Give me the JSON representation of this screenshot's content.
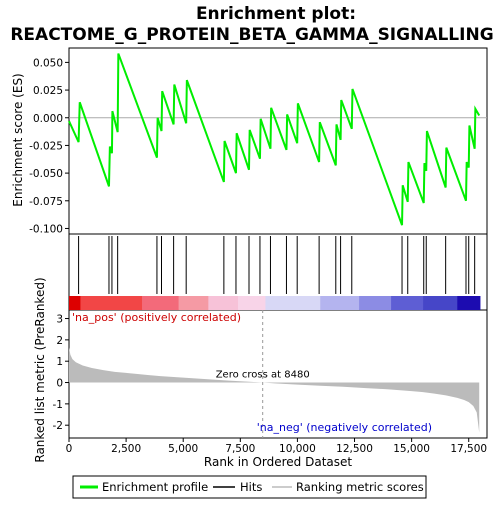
{
  "title_line1": "Enrichment plot:",
  "title_line2": "REACTOME_G_PROTEIN_BETA_GAMMA_SIGNALLING",
  "chart_data": {
    "type": "line",
    "x_axis": {
      "label": "Rank in Ordered Dataset",
      "ticks": [
        0,
        2500,
        5000,
        7500,
        10000,
        12500,
        15000,
        17500
      ],
      "tick_labels": [
        "0",
        "2,500",
        "5,000",
        "7,500",
        "10,000",
        "12,500",
        "15,000",
        "17,500"
      ],
      "range": [
        0,
        18300
      ]
    },
    "es_panel": {
      "ylabel": "Enrichment score (ES)",
      "ylim": [
        -0.105,
        0.063
      ],
      "ticks": [
        0.05,
        0.025,
        0.0,
        -0.025,
        -0.05,
        -0.075,
        -0.1
      ],
      "tick_labels": [
        "0.050",
        "0.025",
        "0.000",
        "-0.025",
        "-0.050",
        "-0.075",
        "-0.100"
      ],
      "color": "#00ee00",
      "points": [
        [
          0,
          -0.003
        ],
        [
          420,
          -0.022
        ],
        [
          470,
          0.014
        ],
        [
          1750,
          -0.062
        ],
        [
          1790,
          -0.026
        ],
        [
          1880,
          -0.032
        ],
        [
          1900,
          0.006
        ],
        [
          2130,
          -0.013
        ],
        [
          2160,
          0.058
        ],
        [
          3850,
          -0.036
        ],
        [
          3880,
          0.0
        ],
        [
          4050,
          -0.012
        ],
        [
          4080,
          0.024
        ],
        [
          4580,
          -0.006
        ],
        [
          4610,
          0.03
        ],
        [
          5130,
          -0.005
        ],
        [
          5160,
          0.034
        ],
        [
          6780,
          -0.058
        ],
        [
          6810,
          -0.021
        ],
        [
          7310,
          -0.05
        ],
        [
          7340,
          -0.014
        ],
        [
          7880,
          -0.047
        ],
        [
          7910,
          -0.011
        ],
        [
          8360,
          -0.037
        ],
        [
          8390,
          -0.001
        ],
        [
          8820,
          -0.028
        ],
        [
          8850,
          0.009
        ],
        [
          9520,
          -0.029
        ],
        [
          9550,
          0.003
        ],
        [
          9990,
          -0.023
        ],
        [
          10020,
          0.013
        ],
        [
          10950,
          -0.04
        ],
        [
          10980,
          -0.004
        ],
        [
          11680,
          -0.043
        ],
        [
          11710,
          -0.006
        ],
        [
          11890,
          -0.02
        ],
        [
          11920,
          0.016
        ],
        [
          12380,
          -0.01
        ],
        [
          12410,
          0.026
        ],
        [
          14580,
          -0.097
        ],
        [
          14610,
          -0.061
        ],
        [
          14830,
          -0.076
        ],
        [
          14860,
          -0.04
        ],
        [
          15530,
          -0.077
        ],
        [
          15560,
          -0.041
        ],
        [
          15640,
          -0.048
        ],
        [
          15670,
          -0.012
        ],
        [
          16490,
          -0.063
        ],
        [
          16520,
          -0.027
        ],
        [
          17380,
          -0.075
        ],
        [
          17410,
          -0.04
        ],
        [
          17500,
          -0.045
        ],
        [
          17530,
          -0.007
        ],
        [
          17760,
          -0.028
        ],
        [
          17790,
          0.008
        ],
        [
          17960,
          0.002
        ]
      ]
    },
    "hits": [
      420,
      1750,
      1880,
      2130,
      3850,
      4050,
      4580,
      5130,
      6780,
      7310,
      7880,
      8360,
      8820,
      9520,
      9990,
      10950,
      11680,
      11890,
      12380,
      14580,
      14830,
      15530,
      15640,
      16490,
      17380,
      17500,
      17760
    ],
    "heatmap": {
      "segments": [
        {
          "from": 0,
          "to": 500,
          "color": "#dd0000"
        },
        {
          "from": 500,
          "to": 3200,
          "color": "#f24646"
        },
        {
          "from": 3200,
          "to": 4800,
          "color": "#f36a7a"
        },
        {
          "from": 4800,
          "to": 6100,
          "color": "#f59aa4"
        },
        {
          "from": 6100,
          "to": 7400,
          "color": "#f7c2d8"
        },
        {
          "from": 7400,
          "to": 8600,
          "color": "#f8d4e8"
        },
        {
          "from": 8600,
          "to": 11000,
          "color": "#d8d8f6"
        },
        {
          "from": 11000,
          "to": 12700,
          "color": "#b4b4ef"
        },
        {
          "from": 12700,
          "to": 14100,
          "color": "#8c8ce4"
        },
        {
          "from": 14100,
          "to": 15500,
          "color": "#5e5ed4"
        },
        {
          "from": 15500,
          "to": 17000,
          "color": "#4646c8"
        },
        {
          "from": 17000,
          "to": 18000,
          "color": "#1c0cb0"
        }
      ]
    },
    "metric_panel": {
      "ylabel": "Ranked list metric (PreRanked)",
      "ylim": [
        -2.6,
        3.4
      ],
      "ticks": [
        3,
        2,
        1,
        0,
        -1,
        -2
      ],
      "tick_labels": [
        "3",
        "2",
        "1",
        "0",
        "-1",
        "-2"
      ],
      "fill_color": "#bbbbbb",
      "curve": [
        [
          0,
          1.65
        ],
        [
          60,
          1.3
        ],
        [
          150,
          1.1
        ],
        [
          300,
          0.95
        ],
        [
          600,
          0.8
        ],
        [
          1000,
          0.68
        ],
        [
          1500,
          0.58
        ],
        [
          2000,
          0.5
        ],
        [
          2500,
          0.45
        ],
        [
          3000,
          0.4
        ],
        [
          3500,
          0.35
        ],
        [
          4000,
          0.3
        ],
        [
          5000,
          0.23
        ],
        [
          6000,
          0.16
        ],
        [
          7000,
          0.09
        ],
        [
          8000,
          0.03
        ],
        [
          8480,
          0.0
        ],
        [
          9000,
          -0.04
        ],
        [
          10000,
          -0.1
        ],
        [
          11000,
          -0.15
        ],
        [
          12000,
          -0.2
        ],
        [
          13000,
          -0.26
        ],
        [
          14000,
          -0.32
        ],
        [
          15000,
          -0.4
        ],
        [
          15500,
          -0.45
        ],
        [
          16000,
          -0.52
        ],
        [
          16500,
          -0.6
        ],
        [
          17000,
          -0.72
        ],
        [
          17300,
          -0.82
        ],
        [
          17500,
          -0.92
        ],
        [
          17700,
          -1.1
        ],
        [
          17850,
          -1.4
        ],
        [
          17960,
          -2.35
        ]
      ],
      "zero_cross": 8480,
      "zero_cross_label": "Zero cross at 8480",
      "pos_label": "'na_pos' (positively correlated)",
      "neg_label": "'na_neg' (negatively correlated)",
      "pos_color": "#cc0000",
      "neg_color": "#0000cc"
    },
    "legend": {
      "placement": "bottom",
      "entries": [
        {
          "name": "Enrichment profile",
          "color": "#00ee00"
        },
        {
          "name": "Hits",
          "color": "#000000"
        },
        {
          "name": "Ranking metric scores",
          "color": "#bbbbbb"
        }
      ]
    }
  }
}
